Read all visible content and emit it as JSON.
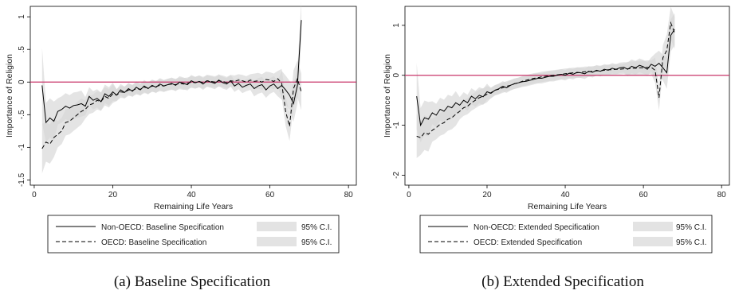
{
  "chart_data": [
    {
      "type": "line",
      "caption": "(a) Baseline Specification",
      "xlabel": "Remaining Life Years",
      "ylabel": "Importance of Religion",
      "xlim": [
        -1,
        82
      ],
      "ylim": [
        -1.58,
        1.16
      ],
      "xticks": [
        0,
        20,
        40,
        60,
        80
      ],
      "yticks": [
        -1.5,
        -1,
        -0.5,
        0,
        0.5,
        1
      ],
      "ytick_labels": [
        "-1.5",
        "-1",
        "-.5",
        "0",
        ".5",
        "1"
      ],
      "reference_line": {
        "y": 0,
        "color": "#c8346a"
      },
      "grid": false,
      "legend_position": "bottom",
      "x": [
        2,
        3,
        4,
        5,
        6,
        7,
        8,
        9,
        10,
        11,
        12,
        13,
        14,
        15,
        16,
        17,
        18,
        19,
        20,
        21,
        22,
        23,
        24,
        25,
        26,
        27,
        28,
        29,
        30,
        31,
        32,
        33,
        34,
        35,
        36,
        37,
        38,
        39,
        40,
        41,
        42,
        43,
        44,
        45,
        46,
        47,
        48,
        49,
        50,
        51,
        52,
        53,
        54,
        55,
        56,
        57,
        58,
        59,
        60,
        61,
        62,
        63,
        64,
        65,
        66,
        67,
        68
      ],
      "series": [
        {
          "name": "Non-OECD: Baseline Specification",
          "style": "solid",
          "values": [
            -0.05,
            -0.62,
            -0.55,
            -0.6,
            -0.45,
            -0.42,
            -0.37,
            -0.4,
            -0.36,
            -0.35,
            -0.33,
            -0.37,
            -0.22,
            -0.28,
            -0.25,
            -0.3,
            -0.18,
            -0.22,
            -0.15,
            -0.2,
            -0.12,
            -0.16,
            -0.1,
            -0.14,
            -0.08,
            -0.12,
            -0.06,
            -0.1,
            -0.05,
            -0.08,
            -0.03,
            -0.06,
            -0.04,
            -0.02,
            -0.05,
            0.0,
            -0.02,
            -0.04,
            0.02,
            -0.01,
            0.01,
            -0.03,
            0.02,
            0.0,
            -0.02,
            0.03,
            -0.01,
            -0.03,
            0.02,
            -0.06,
            -0.02,
            -0.08,
            -0.05,
            -0.03,
            -0.1,
            -0.06,
            -0.04,
            -0.12,
            -0.06,
            -0.03,
            -0.1,
            -0.05,
            -0.12,
            -0.2,
            -0.33,
            -0.05,
            0.95
          ]
        },
        {
          "name": "OECD: Baseline Specification",
          "style": "dashed",
          "values": [
            -1.02,
            -0.92,
            -0.95,
            -0.85,
            -0.8,
            -0.75,
            -0.62,
            -0.6,
            -0.55,
            -0.5,
            -0.45,
            -0.42,
            -0.35,
            -0.33,
            -0.28,
            -0.3,
            -0.22,
            -0.25,
            -0.18,
            -0.2,
            -0.15,
            -0.16,
            -0.12,
            -0.13,
            -0.1,
            -0.11,
            -0.08,
            -0.09,
            -0.06,
            -0.07,
            -0.05,
            -0.06,
            -0.04,
            -0.03,
            -0.04,
            -0.02,
            -0.03,
            -0.02,
            0.0,
            -0.01,
            0.01,
            -0.01,
            0.02,
            0.01,
            0.0,
            0.02,
            0.01,
            -0.01,
            0.02,
            0.01,
            0.03,
            0.02,
            0.0,
            0.03,
            0.01,
            0.02,
            0.0,
            0.04,
            0.03,
            0.01,
            0.05,
            -0.02,
            -0.45,
            -0.68,
            -0.1,
            0.05,
            -0.15
          ]
        }
      ],
      "legend": [
        {
          "label": "Non-OECD: Baseline Specification",
          "ci_label": "95% C.I."
        },
        {
          "label": "OECD: Baseline Specification",
          "ci_label": "95% C.I."
        }
      ]
    },
    {
      "type": "line",
      "caption": "(b) Extended Specification",
      "xlabel": "Remaining Life Years",
      "ylabel": "Importance of Religion",
      "xlim": [
        -1,
        82
      ],
      "ylim": [
        -2.2,
        1.38
      ],
      "xticks": [
        0,
        20,
        40,
        60,
        80
      ],
      "yticks": [
        -2,
        -1,
        0,
        1
      ],
      "ytick_labels": [
        "-2",
        "-1",
        "0",
        "1"
      ],
      "reference_line": {
        "y": 0,
        "color": "#c8346a"
      },
      "grid": false,
      "legend_position": "bottom",
      "x": [
        2,
        3,
        4,
        5,
        6,
        7,
        8,
        9,
        10,
        11,
        12,
        13,
        14,
        15,
        16,
        17,
        18,
        19,
        20,
        21,
        22,
        23,
        24,
        25,
        26,
        27,
        28,
        29,
        30,
        31,
        32,
        33,
        34,
        35,
        36,
        37,
        38,
        39,
        40,
        41,
        42,
        43,
        44,
        45,
        46,
        47,
        48,
        49,
        50,
        51,
        52,
        53,
        54,
        55,
        56,
        57,
        58,
        59,
        60,
        61,
        62,
        63,
        64,
        65,
        66,
        67,
        68
      ],
      "series": [
        {
          "name": "Non-OECD: Extended Specification",
          "style": "solid",
          "values": [
            -0.42,
            -1.0,
            -0.85,
            -0.88,
            -0.75,
            -0.8,
            -0.68,
            -0.72,
            -0.62,
            -0.65,
            -0.55,
            -0.6,
            -0.5,
            -0.55,
            -0.42,
            -0.47,
            -0.4,
            -0.43,
            -0.33,
            -0.36,
            -0.3,
            -0.27,
            -0.22,
            -0.25,
            -0.2,
            -0.17,
            -0.15,
            -0.13,
            -0.12,
            -0.1,
            -0.08,
            -0.06,
            -0.06,
            -0.04,
            -0.02,
            -0.02,
            0.0,
            0.02,
            0.0,
            0.04,
            0.02,
            0.06,
            0.05,
            0.03,
            0.08,
            0.06,
            0.1,
            0.08,
            0.12,
            0.1,
            0.14,
            0.12,
            0.15,
            0.16,
            0.12,
            0.18,
            0.15,
            0.2,
            0.17,
            0.12,
            0.22,
            0.18,
            0.24,
            0.15,
            0.05,
            0.8,
            0.92
          ]
        },
        {
          "name": "OECD: Extended Specification",
          "style": "dashed",
          "values": [
            -1.22,
            -1.25,
            -1.15,
            -1.18,
            -1.1,
            -1.05,
            -0.98,
            -0.95,
            -0.88,
            -0.85,
            -0.78,
            -0.72,
            -0.65,
            -0.62,
            -0.55,
            -0.5,
            -0.45,
            -0.42,
            -0.38,
            -0.35,
            -0.3,
            -0.28,
            -0.25,
            -0.22,
            -0.2,
            -0.17,
            -0.15,
            -0.12,
            -0.1,
            -0.08,
            -0.06,
            -0.05,
            -0.03,
            -0.02,
            -0.01,
            0.0,
            0.01,
            0.02,
            0.03,
            0.04,
            0.05,
            0.05,
            0.06,
            0.07,
            0.07,
            0.08,
            0.09,
            0.09,
            0.1,
            0.11,
            0.11,
            0.12,
            0.12,
            0.13,
            0.13,
            0.14,
            0.14,
            0.15,
            0.15,
            0.16,
            0.16,
            0.1,
            -0.45,
            0.35,
            0.5,
            1.05,
            0.85
          ]
        }
      ],
      "legend": [
        {
          "label": "Non-OECD: Extended Specification",
          "ci_label": "95% C.I."
        },
        {
          "label": "OECD: Extended Specification",
          "ci_label": "95% C.I."
        }
      ]
    }
  ]
}
